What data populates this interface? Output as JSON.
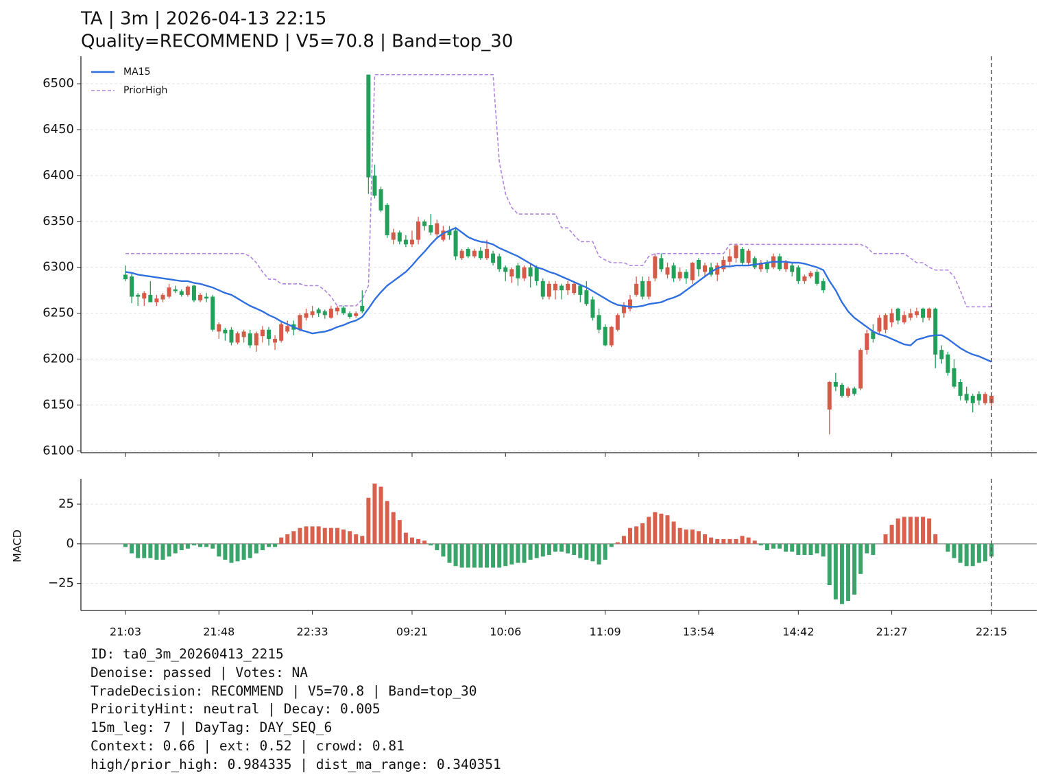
{
  "chart_data": [
    {
      "type": "candlestick",
      "title": "TA | 3m | 2026-04-13 22:15",
      "subtitle": "Quality=RECOMMEND | V5=70.8 | Band=top_30",
      "up_color": "#d65a48",
      "down_color": "#22a05a",
      "open": [
        6292,
        6290,
        6270,
        6266,
        6270,
        6262,
        6265,
        6268,
        6276,
        6274,
        6270,
        6280,
        6264,
        6268,
        6268,
        6230,
        6232,
        6232,
        6218,
        6224,
        6228,
        6215,
        6225,
        6232,
        6218,
        6220,
        6230,
        6238,
        6232,
        6245,
        6248,
        6254,
        6252,
        6245,
        6252,
        6256,
        6250,
        6247,
        6258,
        6510,
        6400,
        6385,
        6368,
        6330,
        6338,
        6330,
        6325,
        6330,
        6350,
        6346,
        6336,
        6330,
        6340,
        6340,
        6310,
        6320,
        6312,
        6318,
        6310,
        6315,
        6312,
        6300,
        6290,
        6302,
        6288,
        6300,
        6300,
        6285,
        6268,
        6275,
        6280,
        6275,
        6272,
        6280,
        6275,
        6265,
        6248,
        6235,
        6215,
        6232,
        6250,
        6255,
        6270,
        6285,
        6268,
        6288,
        6310,
        6292,
        6302,
        6288,
        6295,
        6286,
        6308,
        6295,
        6300,
        6292,
        6298,
        6306,
        6310,
        6320,
        6305,
        6310,
        6298,
        6305,
        6300,
        6312,
        6298,
        6302,
        6300,
        6285,
        6290,
        6295,
        6285,
        6145,
        6175,
        6172,
        6160,
        6168,
        6168,
        6210,
        6230,
        6230,
        6232,
        6240,
        6255,
        6240,
        6245,
        6248,
        6255,
        6245,
        6255,
        6210,
        6205,
        6190,
        6175,
        6162,
        6160,
        6162,
        6152,
        6152
      ],
      "high": [
        6302,
        6293,
        6272,
        6274,
        6285,
        6270,
        6272,
        6282,
        6280,
        6276,
        6280,
        6281,
        6272,
        6272,
        6270,
        6240,
        6234,
        6235,
        6230,
        6232,
        6232,
        6230,
        6236,
        6235,
        6226,
        6240,
        6242,
        6242,
        6250,
        6255,
        6258,
        6256,
        6254,
        6258,
        6258,
        6258,
        6252,
        6252,
        6275,
        6510,
        6412,
        6388,
        6370,
        6342,
        6340,
        6335,
        6340,
        6355,
        6352,
        6358,
        6352,
        6345,
        6345,
        6344,
        6320,
        6322,
        6320,
        6322,
        6330,
        6318,
        6315,
        6302,
        6300,
        6305,
        6302,
        6305,
        6302,
        6288,
        6285,
        6285,
        6282,
        6285,
        6285,
        6282,
        6285,
        6268,
        6255,
        6238,
        6236,
        6250,
        6262,
        6270,
        6290,
        6290,
        6290,
        6315,
        6315,
        6305,
        6305,
        6300,
        6298,
        6306,
        6310,
        6305,
        6305,
        6305,
        6312,
        6320,
        6326,
        6322,
        6320,
        6312,
        6308,
        6308,
        6315,
        6315,
        6308,
        6305,
        6302,
        6292,
        6296,
        6298,
        6288,
        6176,
        6185,
        6174,
        6170,
        6170,
        6212,
        6232,
        6238,
        6248,
        6250,
        6255,
        6256,
        6252,
        6255,
        6256,
        6256,
        6256,
        6256,
        6215,
        6208,
        6200,
        6178,
        6170,
        6162,
        6165,
        6164,
        6162
      ],
      "low": [
        6285,
        6261,
        6258,
        6258,
        6262,
        6258,
        6262,
        6266,
        6272,
        6268,
        6268,
        6262,
        6262,
        6262,
        6230,
        6222,
        6220,
        6215,
        6216,
        6218,
        6212,
        6208,
        6218,
        6215,
        6210,
        6218,
        6228,
        6226,
        6230,
        6242,
        6245,
        6246,
        6244,
        6244,
        6248,
        6248,
        6244,
        6245,
        6250,
        6380,
        6375,
        6360,
        6332,
        6325,
        6325,
        6322,
        6322,
        6325,
        6340,
        6335,
        6332,
        6328,
        6330,
        6308,
        6308,
        6310,
        6310,
        6308,
        6308,
        6302,
        6295,
        6285,
        6283,
        6280,
        6285,
        6278,
        6280,
        6265,
        6265,
        6265,
        6265,
        6270,
        6270,
        6262,
        6258,
        6242,
        6228,
        6214,
        6213,
        6230,
        6245,
        6252,
        6268,
        6265,
        6265,
        6285,
        6295,
        6288,
        6284,
        6285,
        6282,
        6282,
        6290,
        6290,
        6290,
        6285,
        6295,
        6302,
        6305,
        6302,
        6302,
        6298,
        6295,
        6294,
        6298,
        6296,
        6295,
        6290,
        6282,
        6282,
        6288,
        6280,
        6272,
        6118,
        6165,
        6158,
        6158,
        6160,
        6166,
        6205,
        6218,
        6228,
        6228,
        6235,
        6238,
        6238,
        6242,
        6245,
        6240,
        6242,
        6190,
        6195,
        6182,
        6168,
        6155,
        6152,
        6142,
        6150,
        6150,
        6148
      ],
      "close": [
        6287,
        6268,
        6268,
        6272,
        6262,
        6266,
        6270,
        6278,
        6274,
        6270,
        6279,
        6264,
        6270,
        6266,
        6232,
        6238,
        6228,
        6218,
        6228,
        6230,
        6215,
        6228,
        6232,
        6222,
        6222,
        6238,
        6236,
        6232,
        6248,
        6250,
        6252,
        6250,
        6248,
        6255,
        6256,
        6250,
        6246,
        6250,
        6252,
        6398,
        6378,
        6362,
        6335,
        6338,
        6328,
        6325,
        6330,
        6350,
        6345,
        6338,
        6348,
        6340,
        6335,
        6312,
        6318,
        6312,
        6318,
        6310,
        6320,
        6305,
        6298,
        6295,
        6298,
        6288,
        6300,
        6290,
        6285,
        6268,
        6282,
        6282,
        6275,
        6282,
        6282,
        6270,
        6260,
        6245,
        6232,
        6215,
        6235,
        6248,
        6258,
        6265,
        6282,
        6268,
        6285,
        6312,
        6298,
        6300,
        6288,
        6295,
        6288,
        6305,
        6298,
        6302,
        6292,
        6302,
        6308,
        6312,
        6324,
        6305,
        6318,
        6300,
        6305,
        6298,
        6312,
        6298,
        6305,
        6295,
        6285,
        6290,
        6294,
        6282,
        6275,
        6175,
        6170,
        6160,
        6168,
        6162,
        6210,
        6228,
        6222,
        6245,
        6248,
        6250,
        6242,
        6248,
        6250,
        6252,
        6245,
        6255,
        6205,
        6200,
        6185,
        6170,
        6160,
        6155,
        6152,
        6155,
        6162,
        6160
      ],
      "series": [
        {
          "name": "MA15",
          "color": "#2f6fe0",
          "dashed": false,
          "values": [
            6295,
            6294,
            6292,
            6291,
            6290,
            6289,
            6288,
            6287,
            6286,
            6285,
            6285,
            6283,
            6282,
            6280,
            6278,
            6275,
            6272,
            6270,
            6266,
            6262,
            6258,
            6255,
            6252,
            6248,
            6245,
            6241,
            6238,
            6235,
            6232,
            6230,
            6228,
            6229,
            6230,
            6232,
            6235,
            6237,
            6240,
            6242,
            6246,
            6255,
            6265,
            6273,
            6280,
            6285,
            6290,
            6295,
            6302,
            6310,
            6317,
            6325,
            6332,
            6337,
            6340,
            6343,
            6338,
            6333,
            6330,
            6328,
            6327,
            6325,
            6321,
            6318,
            6315,
            6312,
            6308,
            6304,
            6300,
            6298,
            6295,
            6293,
            6290,
            6287,
            6284,
            6281,
            6278,
            6274,
            6270,
            6266,
            6262,
            6259,
            6258,
            6257,
            6257,
            6258,
            6260,
            6261,
            6262,
            6265,
            6267,
            6270,
            6275,
            6280,
            6285,
            6290,
            6295,
            6299,
            6301,
            6301,
            6302,
            6302,
            6302,
            6303,
            6304,
            6305,
            6306,
            6306,
            6306,
            6305,
            6305,
            6304,
            6302,
            6300,
            6297,
            6285,
            6275,
            6262,
            6252,
            6245,
            6240,
            6235,
            6230,
            6227,
            6225,
            6222,
            6219,
            6216,
            6215,
            6221,
            6223,
            6225,
            6226,
            6226,
            6222,
            6217,
            6212,
            6208,
            6205,
            6203,
            6200,
            6197
          ]
        },
        {
          "name": "PriorHigh",
          "color": "#b085e0",
          "dashed": true,
          "values": [
            6315,
            6315,
            6315,
            6315,
            6315,
            6315,
            6315,
            6315,
            6315,
            6315,
            6315,
            6315,
            6315,
            6315,
            6315,
            6315,
            6315,
            6315,
            6315,
            6315,
            6312,
            6305,
            6295,
            6287,
            6287,
            6282,
            6282,
            6282,
            6282,
            6280,
            6280,
            6280,
            6275,
            6268,
            6258,
            6258,
            6258,
            6258,
            6265,
            6280,
            6510,
            6510,
            6510,
            6510,
            6510,
            6510,
            6510,
            6510,
            6510,
            6510,
            6510,
            6510,
            6510,
            6510,
            6510,
            6510,
            6510,
            6510,
            6510,
            6510,
            6415,
            6380,
            6365,
            6358,
            6358,
            6358,
            6358,
            6358,
            6358,
            6358,
            6343,
            6343,
            6335,
            6328,
            6328,
            6328,
            6312,
            6308,
            6305,
            6305,
            6305,
            6302,
            6302,
            6302,
            6312,
            6315,
            6315,
            6315,
            6315,
            6315,
            6315,
            6315,
            6315,
            6315,
            6315,
            6315,
            6315,
            6325,
            6325,
            6325,
            6325,
            6325,
            6325,
            6325,
            6325,
            6325,
            6325,
            6325,
            6325,
            6325,
            6325,
            6325,
            6325,
            6325,
            6325,
            6325,
            6325,
            6325,
            6325,
            6322,
            6315,
            6315,
            6315,
            6315,
            6315,
            6315,
            6310,
            6305,
            6305,
            6300,
            6297,
            6297,
            6297,
            6290,
            6275,
            6257,
            6257,
            6257,
            6257,
            6257
          ]
        }
      ],
      "ylim": [
        6098,
        6530
      ],
      "yticks": [
        6100,
        6150,
        6200,
        6250,
        6300,
        6350,
        6400,
        6450,
        6500
      ],
      "grid": true,
      "legend": "upper left"
    },
    {
      "type": "bar",
      "ylabel": "MACD",
      "pos_color": "#d9604c",
      "neg_color": "#3aa56a",
      "categories": [
        "21:03",
        null,
        null,
        null,
        null,
        null,
        null,
        null,
        null,
        null,
        null,
        null,
        null,
        null,
        null,
        "21:48",
        null,
        null,
        null,
        null,
        null,
        null,
        null,
        null,
        null,
        null,
        null,
        null,
        null,
        null,
        "22:33",
        null,
        null,
        null,
        null,
        null,
        null,
        null,
        null,
        null,
        null,
        null,
        null,
        null,
        null,
        null,
        "09:21",
        null,
        null,
        null,
        null,
        null,
        null,
        null,
        null,
        null,
        null,
        null,
        null,
        null,
        null,
        "10:06",
        null,
        null,
        null,
        null,
        null,
        null,
        null,
        null,
        null,
        null,
        null,
        null,
        null,
        null,
        null,
        "11:09",
        null,
        null,
        null,
        null,
        null,
        null,
        null,
        null,
        null,
        null,
        null,
        null,
        null,
        null,
        "13:54",
        null,
        null,
        null,
        null,
        null,
        null,
        null,
        null,
        null,
        null,
        null,
        null,
        null,
        null,
        null,
        "14:42",
        null,
        null,
        null,
        null,
        null,
        null,
        null,
        null,
        null,
        null,
        null,
        null,
        null,
        null,
        "21:27",
        null,
        null,
        null,
        null,
        null,
        null,
        null,
        null,
        null,
        null,
        null,
        null,
        null,
        null,
        null,
        "22:15"
      ],
      "values": [
        -2,
        -6,
        -9,
        -9,
        -9,
        -10,
        -10,
        -8,
        -6,
        -4,
        -3,
        -1,
        -2,
        -2,
        -3,
        -8,
        -10,
        -12,
        -11,
        -10,
        -9,
        -6,
        -4,
        -2,
        -2,
        4,
        6,
        8,
        10,
        11,
        11,
        11,
        10,
        10,
        10,
        9,
        8,
        6,
        5,
        29,
        38,
        36,
        27,
        20,
        15,
        7,
        4,
        3,
        2,
        -1,
        -4,
        -8,
        -12,
        -14,
        -15,
        -15,
        -15,
        -15,
        -15,
        -15,
        -15,
        -14,
        -13,
        -12,
        -12,
        -10,
        -9,
        -8,
        -7,
        -5,
        -5,
        -6,
        -7,
        -9,
        -10,
        -11,
        -13,
        -10,
        -2,
        1,
        5,
        10,
        11,
        13,
        17,
        20,
        19,
        18,
        14,
        10,
        9,
        9,
        8,
        6,
        4,
        3,
        3,
        3,
        3,
        5,
        4,
        2,
        -1,
        -4,
        -3,
        -3,
        -5,
        -5,
        -7,
        -7,
        -7,
        -6,
        -8,
        -26,
        -35,
        -38,
        -36,
        -32,
        -19,
        -6,
        -7,
        0,
        6,
        12,
        16,
        17,
        17,
        17,
        17,
        16,
        6,
        0,
        -5,
        -9,
        -12,
        -14,
        -14,
        -12,
        -11,
        -8
      ],
      "ylim": [
        -42,
        41
      ],
      "yticks": [
        {
          "value": -25,
          "label": "−25"
        },
        0,
        25
      ],
      "grid": true
    }
  ],
  "notes": [
    "ID: ta0_3m_20260413_2215",
    "Denoise: passed | Votes: NA",
    "TradeDecision: RECOMMEND | V5=70.8 | Band=top_30",
    "PriorityHint: neutral | Decay: 0.005",
    "15m_leg: 7 | DayTag: DAY_SEQ_6",
    "Context: 0.66 | ext: 0.52 | crowd: 0.81",
    "high/prior_high: 0.984335 | dist_ma_range: 0.340351"
  ]
}
